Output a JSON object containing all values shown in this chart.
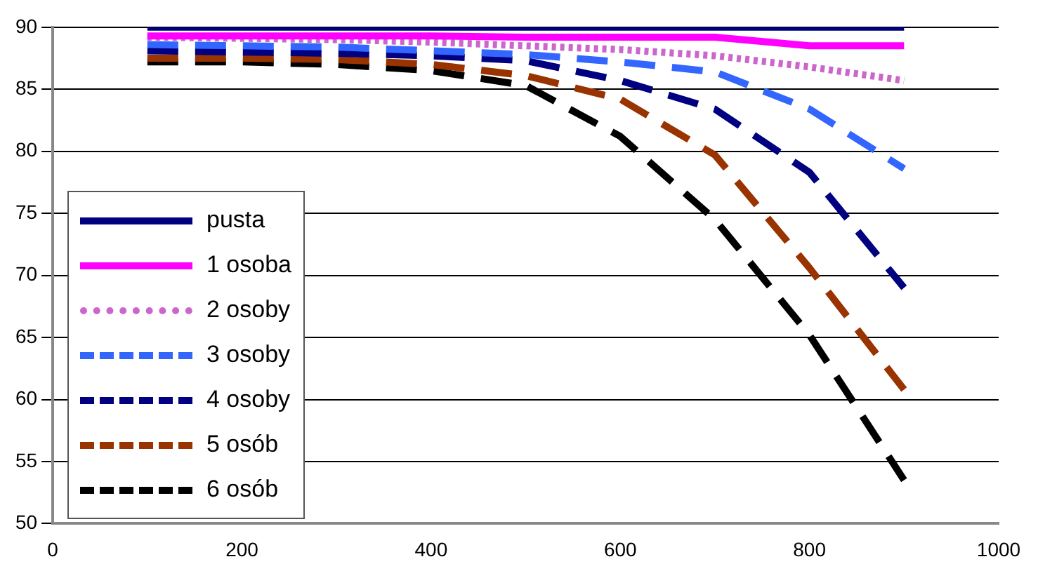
{
  "chart_data": {
    "type": "line",
    "x": [
      100,
      200,
      300,
      400,
      500,
      600,
      700,
      800,
      900
    ],
    "series": [
      {
        "name": "pusta",
        "color": "#000080",
        "line_style": "solid",
        "values": [
          90,
          90,
          90,
          90,
          90,
          90,
          90,
          90,
          90
        ]
      },
      {
        "name": "1 osoba",
        "color": "#ff00ff",
        "line_style": "solid",
        "values": [
          89.3,
          89.3,
          89.3,
          89.3,
          89.2,
          89.2,
          89.2,
          88.5,
          88.5
        ]
      },
      {
        "name": "2 osoby",
        "color": "#cc66cc",
        "line_style": "dotted",
        "values": [
          89.2,
          89.1,
          89,
          88.8,
          88.5,
          88.2,
          87.7,
          86.8,
          85.7
        ]
      },
      {
        "name": "3 osoby",
        "color": "#3366ff",
        "line_style": "dashed",
        "values": [
          88.6,
          88.5,
          88.4,
          88.1,
          87.8,
          87.2,
          86.4,
          83.4,
          78.6
        ]
      },
      {
        "name": "4 osoby",
        "color": "#000080",
        "line_style": "dashed",
        "values": [
          88.1,
          88,
          87.9,
          87.7,
          87.3,
          85.7,
          83.4,
          78.3,
          69
        ]
      },
      {
        "name": "5 osób",
        "color": "#993300",
        "line_style": "dashed",
        "values": [
          87.5,
          87.5,
          87.4,
          87,
          86.1,
          84.2,
          79.7,
          70.6,
          60.8
        ]
      },
      {
        "name": "6 osób",
        "color": "#000000",
        "line_style": "dashed",
        "values": [
          87.2,
          87.2,
          87,
          86.5,
          85.3,
          81.2,
          74.5,
          65.2,
          53.5
        ]
      }
    ],
    "xlim": [
      0,
      1000
    ],
    "xticks": [
      0,
      200,
      400,
      600,
      800,
      1000
    ],
    "ylim": [
      50,
      90
    ],
    "yticks": [
      50,
      55,
      60,
      65,
      70,
      75,
      80,
      85,
      90
    ],
    "grid": "y",
    "legend": "bottom left",
    "marker": "none"
  }
}
